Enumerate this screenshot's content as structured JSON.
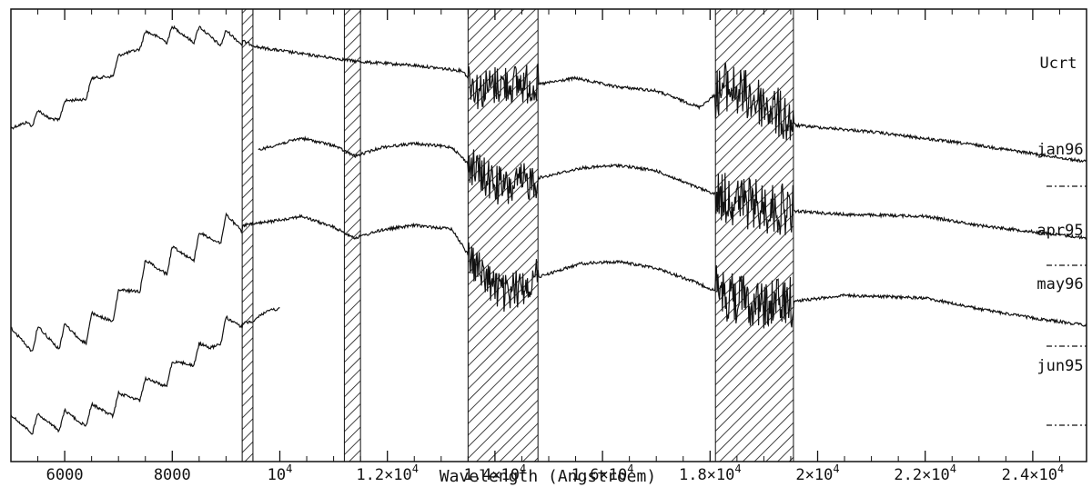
{
  "chart_data": {
    "type": "line",
    "title": "",
    "xlabel": "Wavelength (Angstroem)",
    "ylabel": "",
    "x_range": [
      5000,
      25000
    ],
    "x_ticks": [
      {
        "value": 6000,
        "label": "6000",
        "exp": ""
      },
      {
        "value": 8000,
        "label": "8000",
        "exp": ""
      },
      {
        "value": 10000,
        "label": "10",
        "exp": "4"
      },
      {
        "value": 12000,
        "label": "1.2×10",
        "exp": "4"
      },
      {
        "value": 14000,
        "label": "1.4×10",
        "exp": "4"
      },
      {
        "value": 16000,
        "label": "1.6×10",
        "exp": "4"
      },
      {
        "value": 18000,
        "label": "1.8×10",
        "exp": "4"
      },
      {
        "value": 20000,
        "label": "2×10",
        "exp": "4"
      },
      {
        "value": 22000,
        "label": "2.2×10",
        "exp": "4"
      },
      {
        "value": 24000,
        "label": "2.4×10",
        "exp": "4"
      }
    ],
    "hatched_regions": [
      [
        9300,
        9500
      ],
      [
        11200,
        11500
      ],
      [
        13500,
        14800
      ],
      [
        18100,
        19550
      ]
    ],
    "object_label": "Ucrt",
    "series": [
      {
        "name": "jan96"
      },
      {
        "name": "apr95"
      },
      {
        "name": "may96"
      },
      {
        "name": "jun95"
      }
    ],
    "grid": false,
    "legend": "none"
  }
}
